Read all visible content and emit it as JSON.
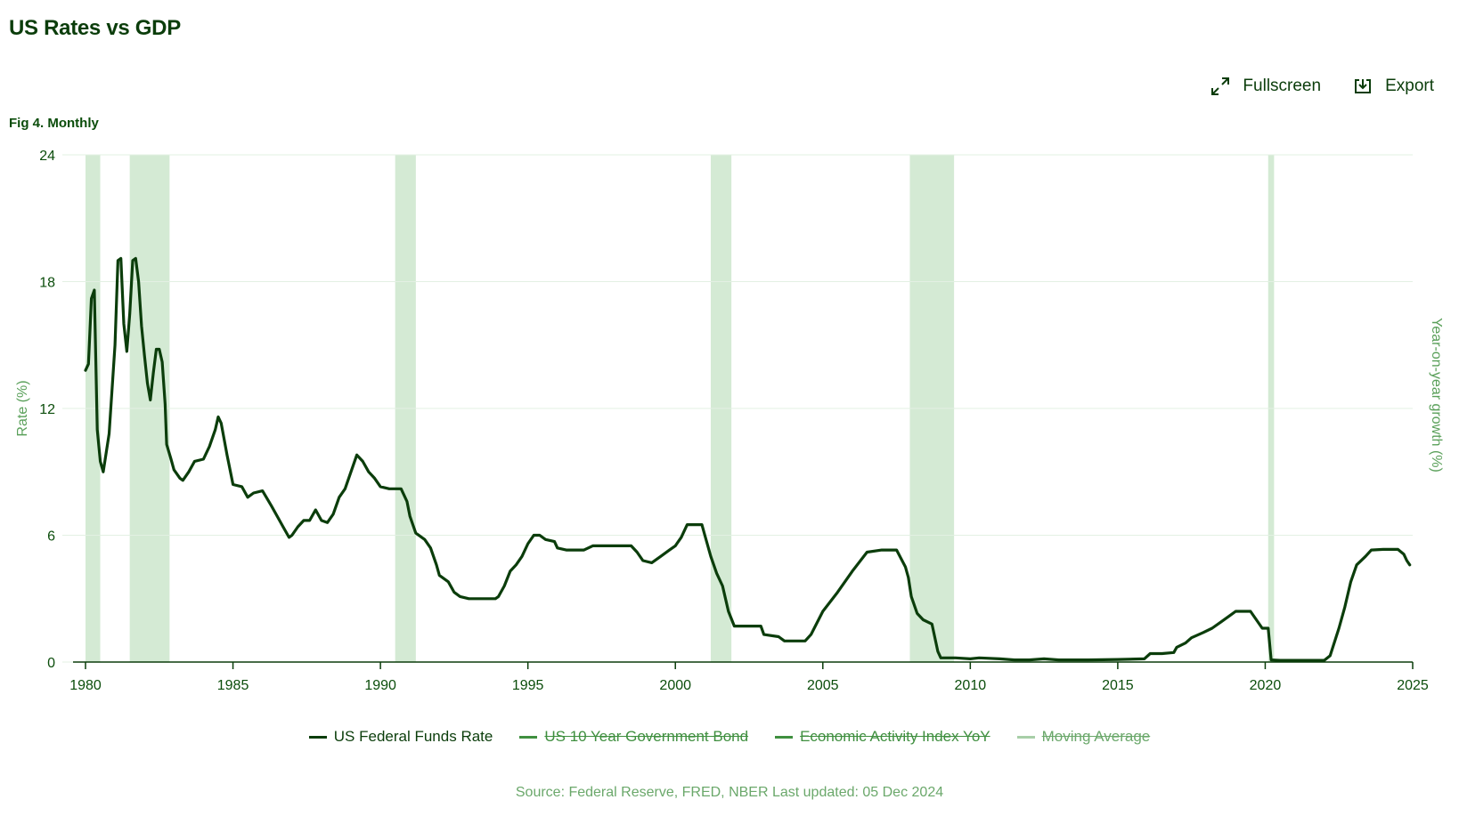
{
  "header": {
    "title": "US Rates vs GDP",
    "subtitle": "Fig 4. Monthly"
  },
  "toolbar": {
    "fullscreen_label": "Fullscreen",
    "fullscreen_icon": "expand-arrows-icon",
    "export_label": "Export",
    "export_icon": "download-tray-icon"
  },
  "legend": [
    {
      "label": "US Federal Funds Rate",
      "color": "#0b3d0b",
      "hidden": false
    },
    {
      "label": "US 10 Year Government Bond",
      "color": "#3f8f3f",
      "hidden": true
    },
    {
      "label": "Economic Activity Index YoY",
      "color": "#3f8f3f",
      "hidden": true
    },
    {
      "label": "Moving Average",
      "color": "#a8cfa8",
      "hidden": true
    }
  ],
  "source": "Source: Federal Reserve, FRED, NBER Last updated: 05 Dec 2024",
  "colors": {
    "line": "#0b3d0b",
    "recession": "#d4ead4",
    "axis_text": "#0b4d0b",
    "axis_label": "#5aa05a",
    "grid": "#e3f0e3"
  },
  "chart_data": {
    "type": "line",
    "ylabel": "Rate (%)",
    "y2label": "Year-on-year growth (%)",
    "xlim": [
      1980,
      2025
    ],
    "ylim": [
      0,
      24
    ],
    "x_ticks": [
      "1980",
      "1985",
      "1990",
      "1995",
      "2000",
      "2005",
      "2010",
      "2015",
      "2020",
      "2025"
    ],
    "y_ticks": [
      "0",
      "6",
      "12",
      "18",
      "24"
    ],
    "grid": true,
    "legend_position": "bottom",
    "recessions": [
      [
        1980.0,
        1980.5
      ],
      [
        1981.5,
        1982.85
      ],
      [
        1990.5,
        1991.2
      ],
      [
        2001.2,
        2001.9
      ],
      [
        2007.95,
        2009.45
      ],
      [
        2020.1,
        2020.3
      ]
    ],
    "series": [
      {
        "name": "US Federal Funds Rate",
        "points": [
          [
            1980.0,
            13.8
          ],
          [
            1980.1,
            14.1
          ],
          [
            1980.2,
            17.2
          ],
          [
            1980.3,
            17.6
          ],
          [
            1980.4,
            11.0
          ],
          [
            1980.5,
            9.5
          ],
          [
            1980.6,
            9.0
          ],
          [
            1980.8,
            10.8
          ],
          [
            1981.0,
            15.0
          ],
          [
            1981.1,
            19.0
          ],
          [
            1981.2,
            19.1
          ],
          [
            1981.3,
            16.0
          ],
          [
            1981.4,
            14.7
          ],
          [
            1981.5,
            16.5
          ],
          [
            1981.6,
            19.0
          ],
          [
            1981.7,
            19.1
          ],
          [
            1981.8,
            18.0
          ],
          [
            1981.9,
            15.9
          ],
          [
            1982.0,
            14.5
          ],
          [
            1982.1,
            13.2
          ],
          [
            1982.2,
            12.4
          ],
          [
            1982.3,
            13.7
          ],
          [
            1982.4,
            14.8
          ],
          [
            1982.5,
            14.8
          ],
          [
            1982.6,
            14.2
          ],
          [
            1982.7,
            12.2
          ],
          [
            1982.75,
            10.3
          ],
          [
            1982.9,
            9.6
          ],
          [
            1983.0,
            9.1
          ],
          [
            1983.2,
            8.7
          ],
          [
            1983.3,
            8.6
          ],
          [
            1983.5,
            9.0
          ],
          [
            1983.7,
            9.5
          ],
          [
            1984.0,
            9.6
          ],
          [
            1984.2,
            10.2
          ],
          [
            1984.4,
            11.0
          ],
          [
            1984.5,
            11.6
          ],
          [
            1984.6,
            11.3
          ],
          [
            1984.8,
            9.8
          ],
          [
            1985.0,
            8.4
          ],
          [
            1985.3,
            8.3
          ],
          [
            1985.5,
            7.8
          ],
          [
            1985.7,
            8.0
          ],
          [
            1986.0,
            8.1
          ],
          [
            1986.3,
            7.4
          ],
          [
            1986.5,
            6.9
          ],
          [
            1986.7,
            6.4
          ],
          [
            1986.9,
            5.9
          ],
          [
            1987.0,
            6.0
          ],
          [
            1987.2,
            6.4
          ],
          [
            1987.4,
            6.7
          ],
          [
            1987.6,
            6.7
          ],
          [
            1987.8,
            7.2
          ],
          [
            1988.0,
            6.7
          ],
          [
            1988.2,
            6.6
          ],
          [
            1988.4,
            7.0
          ],
          [
            1988.6,
            7.8
          ],
          [
            1988.8,
            8.2
          ],
          [
            1989.0,
            9.0
          ],
          [
            1989.2,
            9.8
          ],
          [
            1989.4,
            9.5
          ],
          [
            1989.6,
            9.0
          ],
          [
            1989.8,
            8.7
          ],
          [
            1990.0,
            8.3
          ],
          [
            1990.3,
            8.2
          ],
          [
            1990.7,
            8.2
          ],
          [
            1990.9,
            7.6
          ],
          [
            1991.0,
            6.9
          ],
          [
            1991.2,
            6.1
          ],
          [
            1991.5,
            5.8
          ],
          [
            1991.7,
            5.4
          ],
          [
            1991.9,
            4.6
          ],
          [
            1992.0,
            4.1
          ],
          [
            1992.3,
            3.8
          ],
          [
            1992.5,
            3.3
          ],
          [
            1992.7,
            3.1
          ],
          [
            1993.0,
            3.0
          ],
          [
            1993.5,
            3.0
          ],
          [
            1993.9,
            3.0
          ],
          [
            1994.0,
            3.1
          ],
          [
            1994.2,
            3.6
          ],
          [
            1994.4,
            4.3
          ],
          [
            1994.6,
            4.6
          ],
          [
            1994.8,
            5.0
          ],
          [
            1995.0,
            5.6
          ],
          [
            1995.2,
            6.0
          ],
          [
            1995.4,
            6.0
          ],
          [
            1995.6,
            5.8
          ],
          [
            1995.9,
            5.7
          ],
          [
            1996.0,
            5.4
          ],
          [
            1996.3,
            5.3
          ],
          [
            1996.6,
            5.3
          ],
          [
            1996.9,
            5.3
          ],
          [
            1997.2,
            5.5
          ],
          [
            1997.5,
            5.5
          ],
          [
            1998.0,
            5.5
          ],
          [
            1998.5,
            5.5
          ],
          [
            1998.7,
            5.2
          ],
          [
            1998.9,
            4.8
          ],
          [
            1999.2,
            4.7
          ],
          [
            1999.5,
            5.0
          ],
          [
            1999.8,
            5.3
          ],
          [
            2000.0,
            5.5
          ],
          [
            2000.2,
            5.9
          ],
          [
            2000.4,
            6.5
          ],
          [
            2000.6,
            6.5
          ],
          [
            2000.9,
            6.5
          ],
          [
            2001.0,
            6.0
          ],
          [
            2001.2,
            5.0
          ],
          [
            2001.4,
            4.2
          ],
          [
            2001.6,
            3.6
          ],
          [
            2001.8,
            2.4
          ],
          [
            2002.0,
            1.7
          ],
          [
            2002.5,
            1.7
          ],
          [
            2002.9,
            1.7
          ],
          [
            2003.0,
            1.3
          ],
          [
            2003.5,
            1.2
          ],
          [
            2003.7,
            1.0
          ],
          [
            2004.0,
            1.0
          ],
          [
            2004.4,
            1.0
          ],
          [
            2004.6,
            1.3
          ],
          [
            2005.0,
            2.4
          ],
          [
            2005.5,
            3.3
          ],
          [
            2006.0,
            4.3
          ],
          [
            2006.5,
            5.2
          ],
          [
            2007.0,
            5.3
          ],
          [
            2007.5,
            5.3
          ],
          [
            2007.8,
            4.5
          ],
          [
            2007.9,
            4.0
          ],
          [
            2008.0,
            3.1
          ],
          [
            2008.2,
            2.3
          ],
          [
            2008.4,
            2.0
          ],
          [
            2008.7,
            1.8
          ],
          [
            2008.9,
            0.5
          ],
          [
            2009.0,
            0.2
          ],
          [
            2009.5,
            0.2
          ],
          [
            2010.0,
            0.15
          ],
          [
            2010.3,
            0.2
          ],
          [
            2011.0,
            0.15
          ],
          [
            2011.5,
            0.1
          ],
          [
            2012.0,
            0.1
          ],
          [
            2012.5,
            0.15
          ],
          [
            2013.0,
            0.1
          ],
          [
            2014.0,
            0.1
          ],
          [
            2015.0,
            0.12
          ],
          [
            2015.9,
            0.15
          ],
          [
            2016.1,
            0.4
          ],
          [
            2016.5,
            0.4
          ],
          [
            2016.9,
            0.45
          ],
          [
            2017.0,
            0.7
          ],
          [
            2017.3,
            0.9
          ],
          [
            2017.5,
            1.15
          ],
          [
            2017.9,
            1.4
          ],
          [
            2018.2,
            1.6
          ],
          [
            2018.5,
            1.9
          ],
          [
            2018.8,
            2.2
          ],
          [
            2019.0,
            2.4
          ],
          [
            2019.5,
            2.4
          ],
          [
            2019.7,
            2.0
          ],
          [
            2019.9,
            1.6
          ],
          [
            2020.1,
            1.6
          ],
          [
            2020.2,
            0.1
          ],
          [
            2020.5,
            0.08
          ],
          [
            2021.0,
            0.08
          ],
          [
            2021.5,
            0.08
          ],
          [
            2022.0,
            0.08
          ],
          [
            2022.2,
            0.3
          ],
          [
            2022.5,
            1.6
          ],
          [
            2022.7,
            2.6
          ],
          [
            2022.9,
            3.8
          ],
          [
            2023.1,
            4.6
          ],
          [
            2023.4,
            5.0
          ],
          [
            2023.6,
            5.3
          ],
          [
            2024.0,
            5.33
          ],
          [
            2024.5,
            5.33
          ],
          [
            2024.7,
            5.1
          ],
          [
            2024.8,
            4.8
          ],
          [
            2024.9,
            4.6
          ]
        ]
      }
    ]
  }
}
